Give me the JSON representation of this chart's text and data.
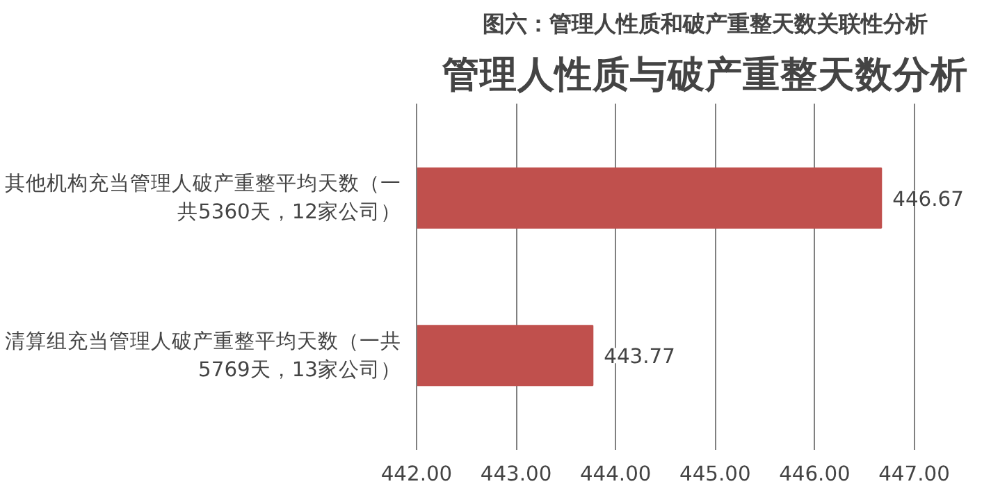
{
  "chart_data": {
    "type": "bar",
    "orientation": "horizontal",
    "title": "图六：管理人性质和破产重整天数关联性分析",
    "subtitle": "管理人性质与破产重整天数分析",
    "categories": [
      "其他机构充当管理人破产重整平均天数（一共5360天，12家公司）",
      "清算组充当管理人破产重整平均天数（一共5769天，13家公司）"
    ],
    "values": [
      446.67,
      443.77
    ],
    "color": "#c0504d",
    "data_labels": true,
    "grid": "x",
    "xlim": [
      442,
      447
    ],
    "xticks": [
      {
        "value": 442,
        "label": "442.00"
      },
      {
        "value": 443,
        "label": "443.00"
      },
      {
        "value": 444,
        "label": "444.00"
      },
      {
        "value": 445,
        "label": "445.00"
      },
      {
        "value": 446,
        "label": "446.00"
      },
      {
        "value": 447,
        "label": "447.00"
      }
    ]
  }
}
